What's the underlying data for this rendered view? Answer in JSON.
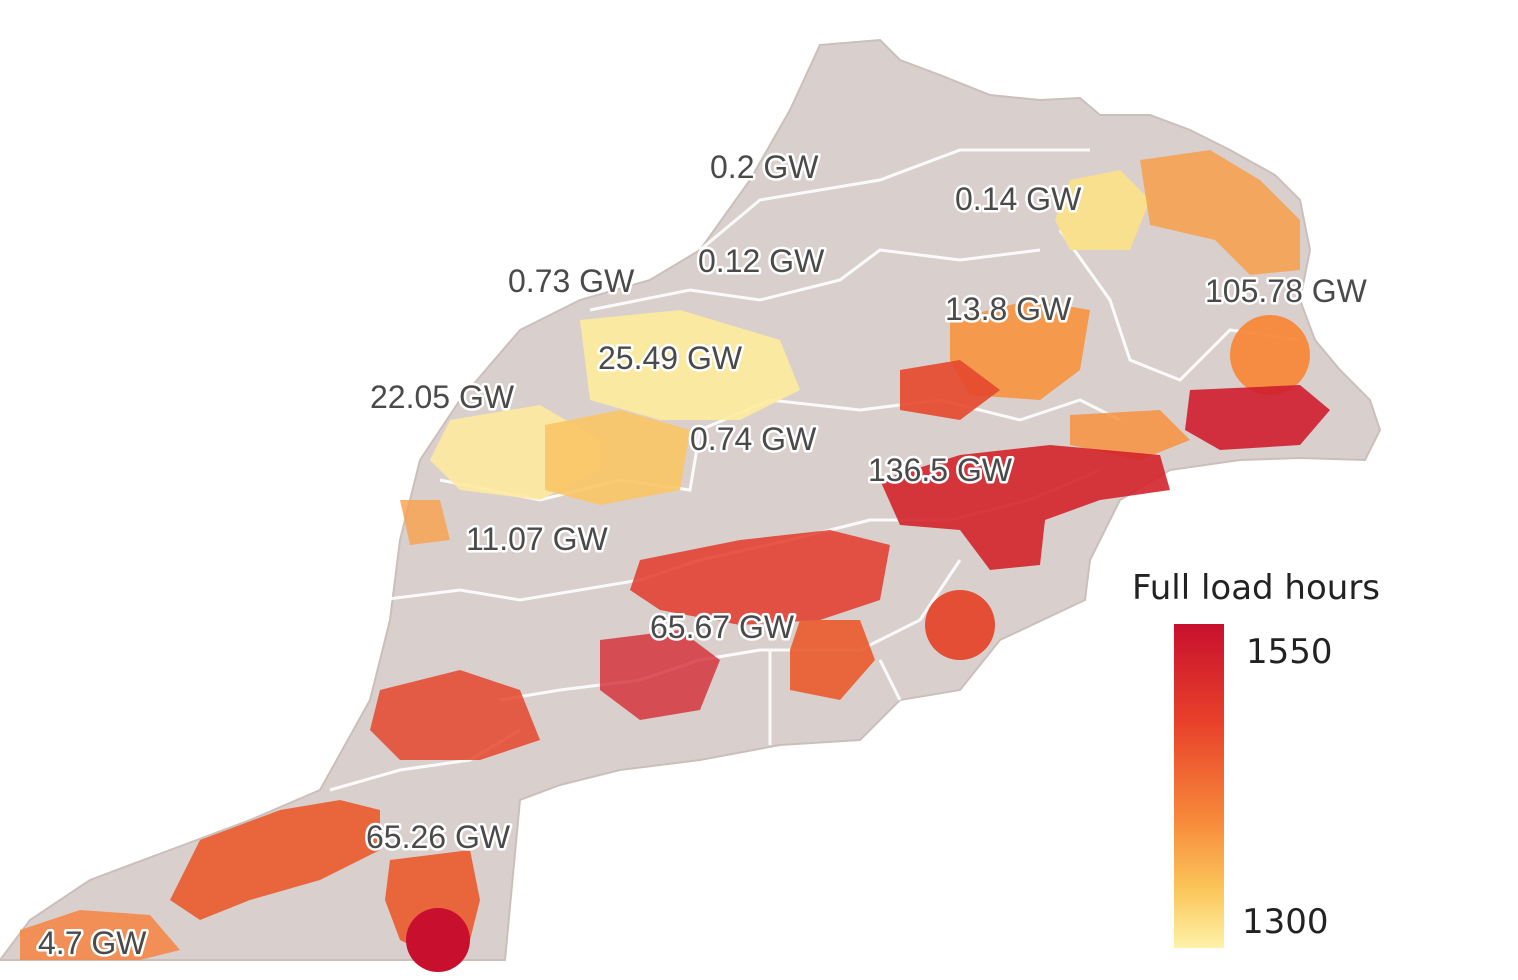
{
  "map": {
    "capacity_labels": {
      "north_a": "0.2 GW",
      "north_b": "0.14 GW",
      "central_a": "0.12 GW",
      "west_a": "0.73 GW",
      "east_a": "105.78 GW",
      "east_b": "13.8 GW",
      "central_b": "25.49 GW",
      "west_b": "22.05 GW",
      "central_c": "0.74 GW",
      "southeast_a": "136.5 GW",
      "west_c": "11.07 GW",
      "south_a": "65.67 GW",
      "south_b": "65.26 GW",
      "southwest_a": "4.7 GW"
    }
  },
  "legend": {
    "title": "Full load hours",
    "max": "1550",
    "min": "1300",
    "colors": [
      "#c8102e",
      "#e8402a",
      "#f7883a",
      "#fbc65a",
      "#fff2a8"
    ]
  }
}
